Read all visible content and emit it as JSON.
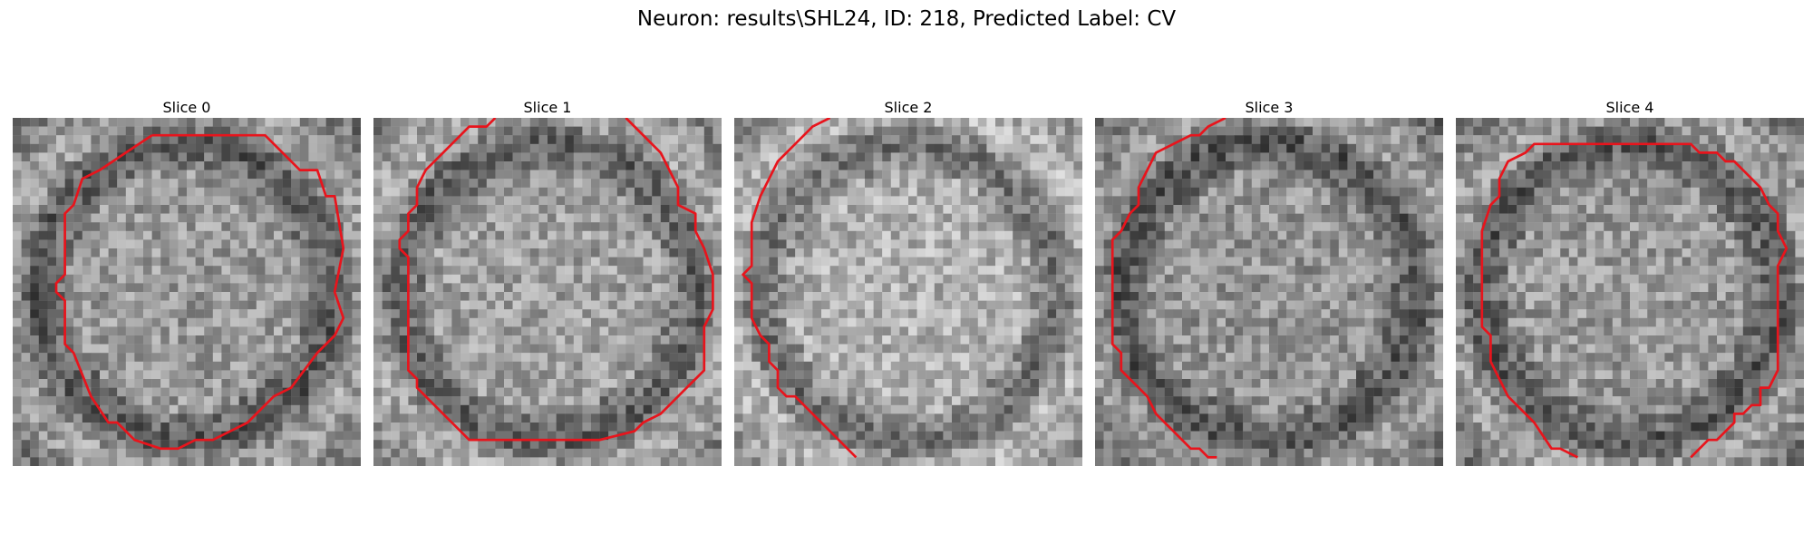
{
  "figure": {
    "title": "Neuron: results\\SHL24, ID: 218, Predicted Label: CV"
  },
  "contour_color": "#e8141c",
  "panels": [
    {
      "title": "Slice 0",
      "seed": 11,
      "brightness": 0.0,
      "contour": [
        [
          16,
          2
        ],
        [
          29,
          2
        ],
        [
          33,
          6
        ],
        [
          35,
          6
        ],
        [
          36,
          9
        ],
        [
          37,
          9
        ],
        [
          38,
          15
        ],
        [
          37,
          20
        ],
        [
          38,
          23
        ],
        [
          37,
          25
        ],
        [
          35,
          27
        ],
        [
          32,
          31
        ],
        [
          30,
          32
        ],
        [
          27,
          35
        ],
        [
          25,
          36
        ],
        [
          23,
          37
        ],
        [
          21,
          37
        ],
        [
          19,
          38
        ],
        [
          17,
          38
        ],
        [
          14,
          37
        ],
        [
          12,
          35
        ],
        [
          11,
          35
        ],
        [
          9,
          32
        ],
        [
          7,
          27
        ],
        [
          6,
          26
        ],
        [
          6,
          21
        ],
        [
          5,
          20
        ],
        [
          5,
          19
        ],
        [
          6,
          18
        ],
        [
          6,
          11
        ],
        [
          7,
          10
        ],
        [
          8,
          7
        ],
        [
          10,
          6
        ],
        [
          13,
          4
        ],
        [
          16,
          2
        ]
      ],
      "open": false
    },
    {
      "title": "Slice 1",
      "seed": 23,
      "brightness": 0.03,
      "contour": [
        [
          14,
          0
        ],
        [
          13,
          1
        ],
        [
          11,
          1
        ],
        [
          10,
          2
        ],
        [
          8,
          4
        ],
        [
          6,
          6
        ],
        [
          5,
          8
        ],
        [
          5,
          10
        ],
        [
          4,
          11
        ],
        [
          4,
          13
        ],
        [
          3,
          14
        ],
        [
          3,
          15
        ],
        [
          4,
          16
        ],
        [
          4,
          29
        ],
        [
          5,
          30
        ],
        [
          5,
          31
        ],
        [
          6,
          32
        ],
        [
          7,
          33
        ],
        [
          8,
          34
        ],
        [
          10,
          36
        ],
        [
          11,
          37
        ],
        [
          13,
          37
        ],
        [
          16,
          37
        ],
        [
          19,
          37
        ],
        [
          23,
          37
        ],
        [
          26,
          37
        ],
        [
          30,
          36
        ],
        [
          31,
          35
        ],
        [
          33,
          34
        ],
        [
          34,
          33
        ],
        [
          36,
          31
        ],
        [
          37,
          30
        ],
        [
          38,
          29
        ],
        [
          38,
          24
        ],
        [
          39,
          22
        ],
        [
          39,
          18
        ],
        [
          38,
          15
        ],
        [
          37,
          13
        ],
        [
          37,
          11
        ],
        [
          35,
          10
        ],
        [
          35,
          8
        ],
        [
          34,
          6
        ],
        [
          33,
          4
        ],
        [
          29,
          0
        ]
      ],
      "open": true
    },
    {
      "title": "Slice 2",
      "seed": 37,
      "brightness": 0.09,
      "contour": [
        [
          11,
          0
        ],
        [
          9,
          1
        ],
        [
          7,
          3
        ],
        [
          5,
          5
        ],
        [
          4,
          7
        ],
        [
          3,
          9
        ],
        [
          2,
          12
        ],
        [
          2,
          17
        ],
        [
          1,
          18
        ],
        [
          2,
          19
        ],
        [
          2,
          21
        ],
        [
          2,
          23
        ],
        [
          3,
          25
        ],
        [
          4,
          26
        ],
        [
          4,
          28
        ],
        [
          5,
          29
        ],
        [
          5,
          31
        ],
        [
          6,
          32
        ],
        [
          7,
          32
        ],
        [
          8,
          33
        ],
        [
          9,
          34
        ],
        [
          10,
          35
        ],
        [
          11,
          36
        ],
        [
          12,
          37
        ],
        [
          13,
          38
        ],
        [
          14,
          39
        ]
      ],
      "open": true
    },
    {
      "title": "Slice 3",
      "seed": 51,
      "brightness": -0.02,
      "contour": [
        [
          15,
          0
        ],
        [
          13,
          1
        ],
        [
          12,
          2
        ],
        [
          11,
          2
        ],
        [
          9,
          3
        ],
        [
          7,
          4
        ],
        [
          6,
          6
        ],
        [
          5,
          8
        ],
        [
          5,
          10
        ],
        [
          4,
          11
        ],
        [
          3,
          13
        ],
        [
          2,
          14
        ],
        [
          2,
          17
        ],
        [
          2,
          22
        ],
        [
          2,
          26
        ],
        [
          3,
          27
        ],
        [
          3,
          29
        ],
        [
          4,
          30
        ],
        [
          5,
          31
        ],
        [
          6,
          32
        ],
        [
          7,
          34
        ],
        [
          8,
          35
        ],
        [
          9,
          36
        ],
        [
          10,
          37
        ],
        [
          11,
          38
        ],
        [
          12,
          38
        ],
        [
          13,
          39
        ],
        [
          14,
          39
        ]
      ],
      "open": true
    },
    {
      "title": "Slice 4",
      "seed": 67,
      "brightness": 0.0,
      "contour": [
        [
          14,
          39
        ],
        [
          12,
          38
        ],
        [
          11,
          38
        ],
        [
          9,
          35
        ],
        [
          6,
          32
        ],
        [
          5,
          30
        ],
        [
          4,
          28
        ],
        [
          4,
          25
        ],
        [
          3,
          24
        ],
        [
          3,
          16
        ],
        [
          3,
          13
        ],
        [
          4,
          10
        ],
        [
          5,
          9
        ],
        [
          5,
          7
        ],
        [
          6,
          5
        ],
        [
          8,
          4
        ],
        [
          9,
          3
        ],
        [
          11,
          3
        ],
        [
          17,
          3
        ],
        [
          20,
          3
        ],
        [
          24,
          3
        ],
        [
          27,
          3
        ],
        [
          28,
          4
        ],
        [
          30,
          4
        ],
        [
          31,
          5
        ],
        [
          32,
          5
        ],
        [
          33,
          6
        ],
        [
          34,
          7
        ],
        [
          35,
          8
        ],
        [
          36,
          10
        ],
        [
          37,
          11
        ],
        [
          37,
          13
        ],
        [
          38,
          15
        ],
        [
          37,
          17
        ],
        [
          37,
          18
        ],
        [
          37,
          19
        ],
        [
          37,
          22
        ],
        [
          37,
          25
        ],
        [
          37,
          28
        ],
        [
          37,
          29
        ],
        [
          36,
          31
        ],
        [
          35,
          31
        ],
        [
          35,
          33
        ],
        [
          34,
          33
        ],
        [
          33,
          34
        ],
        [
          32,
          34
        ],
        [
          32,
          35
        ],
        [
          31,
          36
        ],
        [
          30,
          37
        ],
        [
          29,
          37
        ],
        [
          28,
          38
        ],
        [
          27,
          39
        ]
      ],
      "open": true
    }
  ]
}
